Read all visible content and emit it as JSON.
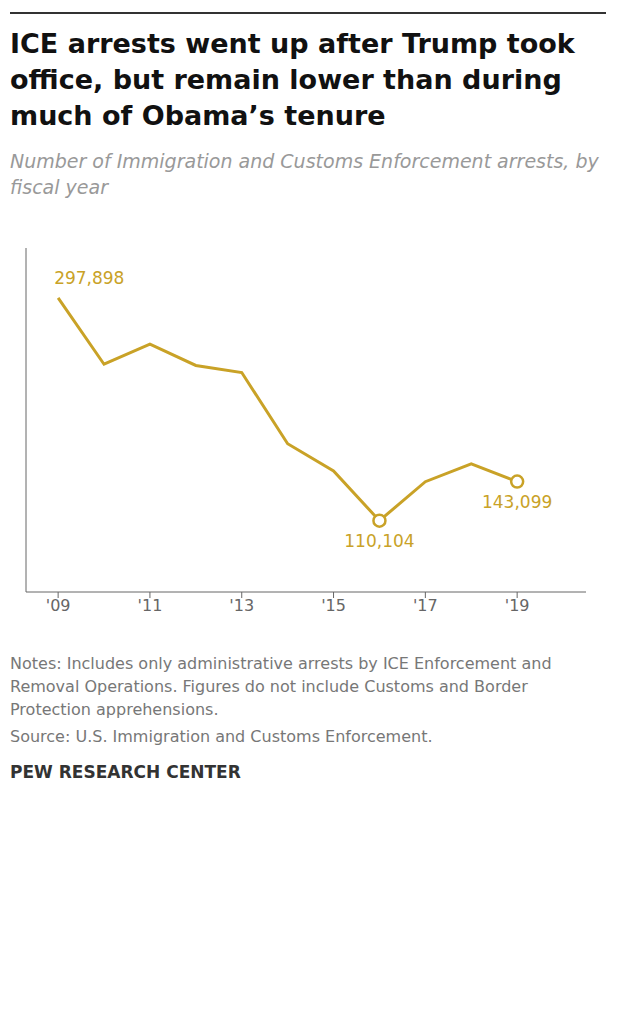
{
  "chart_data": {
    "type": "line",
    "title": "ICE arrests went up after Trump took office, but remain lower than during much of Obama’s tenure",
    "subtitle": "Number of Immigration and Customs Enforcement arrests, by fiscal year",
    "x": [
      2009,
      2010,
      2011,
      2012,
      2013,
      2014,
      2015,
      2016,
      2017,
      2018,
      2019
    ],
    "values": [
      297898,
      242000,
      259000,
      241000,
      235000,
      175000,
      152000,
      110104,
      143000,
      158000,
      143099
    ],
    "color": "#C9A227",
    "xlim": [
      2008.3,
      2020.5
    ],
    "xticks": [
      {
        "value": 2009,
        "label": "'09"
      },
      {
        "value": 2011,
        "label": "'11"
      },
      {
        "value": 2013,
        "label": "'13"
      },
      {
        "value": 2015,
        "label": "'15"
      },
      {
        "value": 2017,
        "label": "'17"
      },
      {
        "value": 2019,
        "label": "'19"
      }
    ],
    "ylim": [
      50000,
      340000
    ],
    "tick_labels": "x",
    "grid": false,
    "highlight_points": [
      {
        "x": 2016,
        "y": 110104
      },
      {
        "x": 2019,
        "y": 143099
      }
    ],
    "annotations": [
      {
        "x": 2009,
        "y": 297898,
        "text": "297,898"
      },
      {
        "x": 2016,
        "y": 110104,
        "text": "110,104"
      },
      {
        "x": 2019,
        "y": 143099,
        "text": "143,099"
      }
    ],
    "notes": [
      "Notes: Includes only administrative arrests by ICE Enforcement and Removal Operations. Figures do not include Customs and Border Protection apprehensions.",
      "Source: U.S. Immigration and Customs Enforcement."
    ],
    "source": "PEW RESEARCH CENTER"
  }
}
